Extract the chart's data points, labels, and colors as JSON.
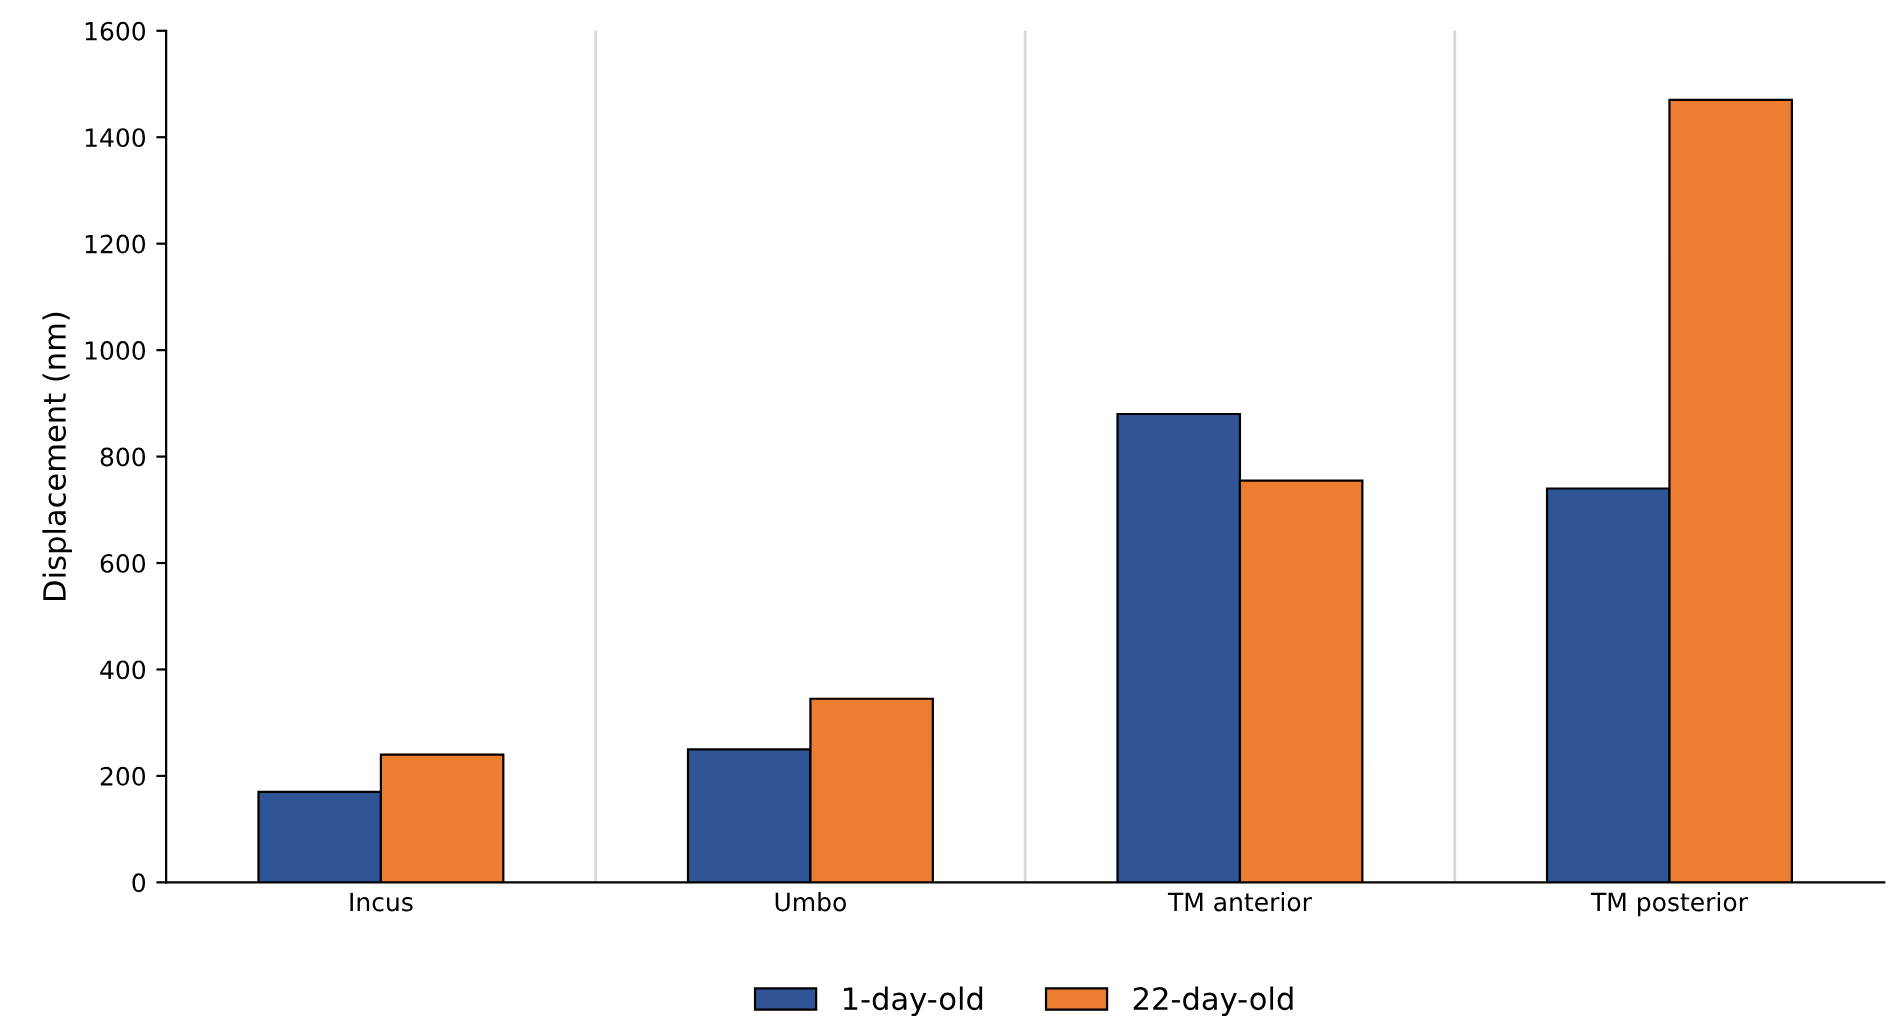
{
  "chart_data": {
    "type": "bar",
    "ylabel": "Displacement (nm)",
    "categories": [
      "Incus",
      "Umbo",
      "TM anterior",
      "TM posterior"
    ],
    "series": [
      {
        "name": "1-day-old",
        "color": "#2f5597",
        "values": [
          170,
          250,
          880,
          740
        ]
      },
      {
        "name": "22-day-old",
        "color": "#ed7d31",
        "values": [
          240,
          345,
          755,
          1470
        ]
      }
    ],
    "ylim": [
      0,
      1600
    ],
    "yticks": [
      0,
      200,
      400,
      600,
      800,
      1000,
      1200,
      1400,
      1600
    ],
    "grid": "x",
    "legend": "bottom"
  }
}
